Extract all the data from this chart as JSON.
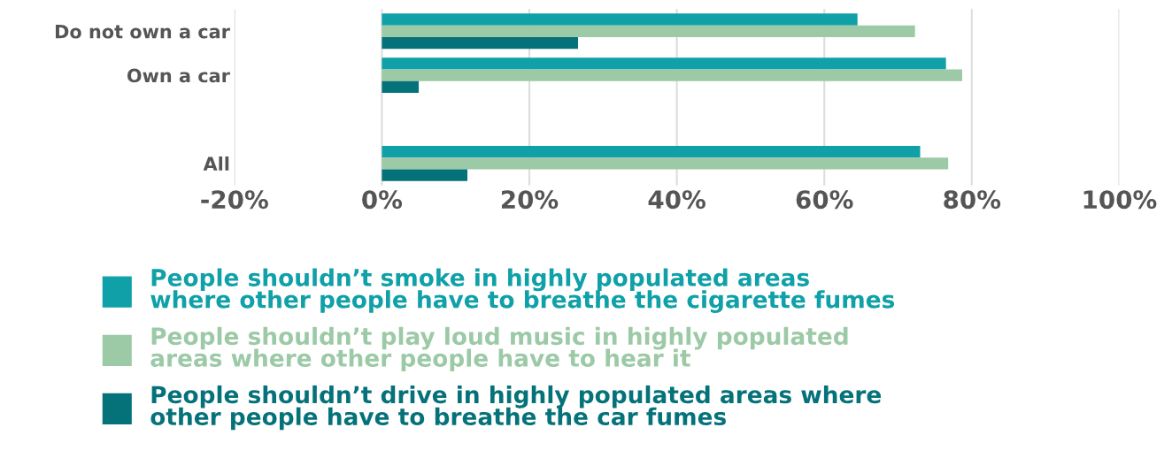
{
  "chart_data": {
    "type": "bar",
    "orientation": "horizontal",
    "categories": [
      "Do not own a car",
      "Own a car",
      null,
      "All"
    ],
    "series": [
      {
        "name": "People shouldn’t smoke in highly populated areas\nwhere other people have to breathe the cigarette fumes",
        "color": "#0fa0a8",
        "values": [
          64.5,
          76.5,
          null,
          73
        ]
      },
      {
        "name": "People shouldn’t play loud music in highly populated\nareas where other people have to hear it",
        "color": "#9cc9a6",
        "values": [
          72.3,
          78.7,
          null,
          76.8
        ]
      },
      {
        "name": "People shouldn’t drive in highly populated areas where\nother people have to breathe the car fumes",
        "color": "#05727a",
        "values": [
          26.6,
          5,
          null,
          11.6
        ]
      }
    ],
    "xlim": [
      -20,
      100
    ],
    "xticks": [
      {
        "value": -20,
        "label": "-20%"
      },
      {
        "value": 0,
        "label": "0%"
      },
      {
        "value": 20,
        "label": "20%"
      },
      {
        "value": 40,
        "label": "40%"
      },
      {
        "value": 60,
        "label": "60%"
      },
      {
        "value": 80,
        "label": "80%"
      },
      {
        "value": 100,
        "label": "100%"
      }
    ],
    "grid": "x",
    "legend": "bottom"
  }
}
